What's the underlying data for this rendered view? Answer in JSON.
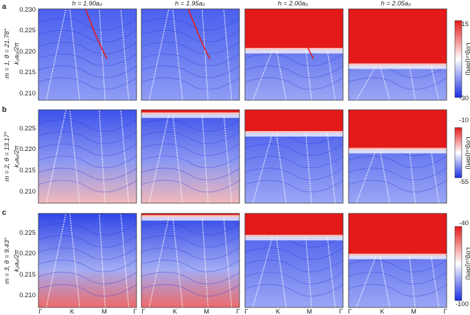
{
  "figure": {
    "columns": [
      {
        "label": "h = 1.90a₀"
      },
      {
        "label": "h = 1.95a₀"
      },
      {
        "label": "h = 2.00a₀"
      },
      {
        "label": "h = 2.05a₀"
      }
    ],
    "rows": [
      {
        "panel_label": "a",
        "ylabel": "m = 1, θ = 21.78°",
        "yaxis_label": "k₂a₀/2π",
        "yticks": [
          "0.230",
          "0.225",
          "0.220",
          "0.215",
          "0.210"
        ],
        "colorbar": {
          "max": "15",
          "min": "-30",
          "label": "Log₁₀(|det|)"
        },
        "band_level": [
          0,
          0,
          0.45,
          0.62
        ]
      },
      {
        "panel_label": "b",
        "ylabel": "m = 2, θ = 13.17°",
        "yaxis_label": "k₂a₀/2π",
        "yticks": [
          "0.225",
          "0.220",
          "0.215",
          "0.210"
        ],
        "colorbar": {
          "max": "-10",
          "min": "-55",
          "label": "Log₁₀(|det|)"
        },
        "band_level": [
          0,
          0.05,
          0.25,
          0.43
        ]
      },
      {
        "panel_label": "c",
        "ylabel": "m = 3, θ = 9.43°",
        "yaxis_label": "k₂a₀/2π",
        "yticks": [
          "0.225",
          "0.220",
          "0.215",
          "0.210"
        ],
        "colorbar": {
          "max": "-40",
          "min": "-100",
          "label": "Log₁₀(|det|)"
        },
        "band_level": [
          0,
          0.04,
          0.25,
          0.45
        ]
      }
    ],
    "xticks": [
      "Γ",
      "K",
      "M",
      "Γ"
    ],
    "colors": {
      "low": "#1a2fe0",
      "mid": "#ffffff",
      "high": "#e41a1a"
    }
  }
}
